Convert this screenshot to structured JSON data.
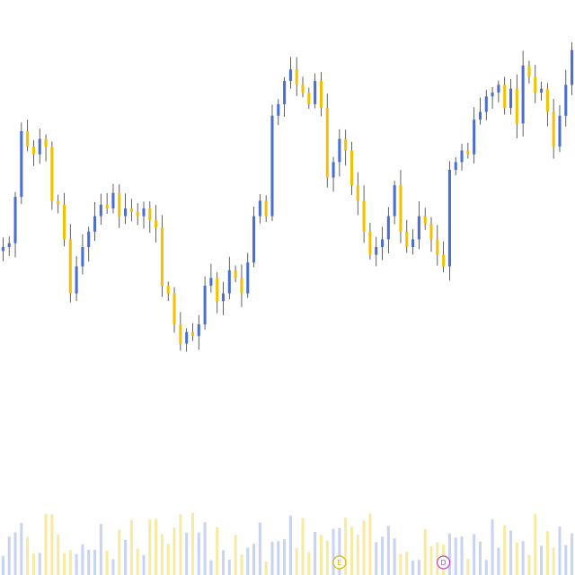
{
  "chart_data": {
    "type": "candlestick",
    "title": "",
    "xlabel": "",
    "ylabel": "",
    "grid": false,
    "legend": "none",
    "ylim": [
      0,
      100
    ],
    "colors": {
      "up": "#4a6fd0",
      "down": "#f2c200",
      "wick": "#3a3a3a",
      "volume_up": "#c8d4f2",
      "volume_down": "#f7eaa3",
      "earnings_marker": "#d9b400",
      "dividend_marker": "#c040c0"
    },
    "closes": [
      50,
      51,
      63,
      80,
      76,
      74,
      78,
      76,
      62,
      61,
      52,
      38,
      45,
      50,
      54,
      58,
      61,
      60,
      64,
      58,
      60,
      59,
      58,
      60,
      57,
      55,
      40,
      38,
      30,
      25,
      28,
      27,
      30,
      40,
      42,
      36,
      38,
      44,
      42,
      38,
      46,
      58,
      62,
      58,
      84,
      87,
      93,
      96,
      92,
      90,
      87,
      93,
      86,
      68,
      72,
      78,
      75,
      66,
      62,
      54,
      48,
      50,
      52,
      58,
      66,
      54,
      50,
      52,
      58,
      56,
      52,
      48,
      45,
      70,
      72,
      75,
      74,
      83,
      85,
      89,
      90,
      92,
      86,
      91,
      82,
      97,
      94,
      90,
      91,
      85,
      76,
      84,
      92,
      101
    ],
    "markers": [
      {
        "index": 55,
        "symbol": "E",
        "kind": "earnings"
      },
      {
        "index": 72,
        "symbol": "D",
        "kind": "dividend"
      }
    ]
  }
}
